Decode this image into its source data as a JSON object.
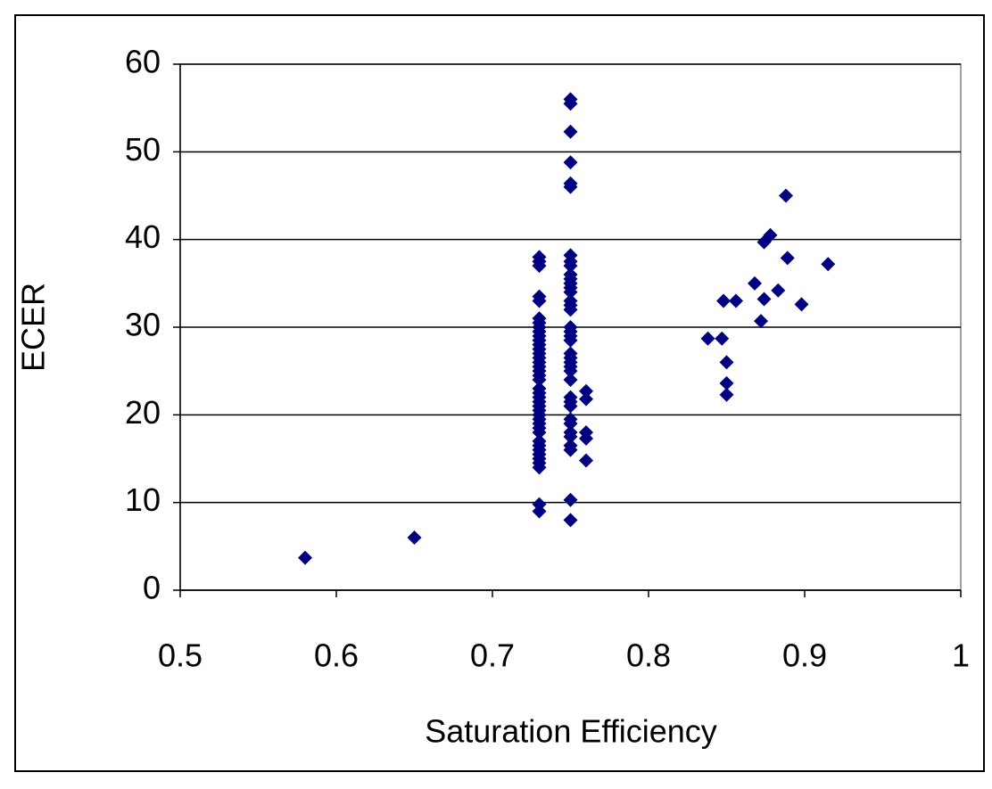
{
  "chart_data": {
    "type": "scatter",
    "x_label": "Saturation Efficiency",
    "y_label": "ECER",
    "color": "#000080",
    "grid": true,
    "xlim": [
      0.5,
      1
    ],
    "xticks": [
      0.5,
      0.6,
      0.7,
      0.8,
      0.9,
      1
    ],
    "ylim": [
      0,
      60
    ],
    "yticks": [
      0,
      10,
      20,
      30,
      40,
      50,
      60
    ],
    "x": [
      0.58,
      0.65,
      0.73,
      0.73,
      0.73,
      0.73,
      0.73,
      0.73,
      0.73,
      0.73,
      0.73,
      0.73,
      0.73,
      0.73,
      0.73,
      0.73,
      0.73,
      0.73,
      0.73,
      0.73,
      0.73,
      0.73,
      0.73,
      0.73,
      0.73,
      0.73,
      0.73,
      0.73,
      0.73,
      0.73,
      0.73,
      0.73,
      0.73,
      0.73,
      0.73,
      0.73,
      0.73,
      0.73,
      0.73,
      0.73,
      0.73,
      0.73,
      0.75,
      0.75,
      0.75,
      0.75,
      0.75,
      0.75,
      0.75,
      0.75,
      0.75,
      0.75,
      0.75,
      0.75,
      0.75,
      0.75,
      0.75,
      0.75,
      0.75,
      0.75,
      0.75,
      0.75,
      0.75,
      0.75,
      0.75,
      0.75,
      0.75,
      0.75,
      0.75,
      0.75,
      0.75,
      0.75,
      0.75,
      0.75,
      0.75,
      0.75,
      0.75,
      0.75,
      0.75,
      0.75,
      0.76,
      0.76,
      0.76,
      0.76,
      0.76,
      0.838,
      0.847,
      0.848,
      0.85,
      0.85,
      0.85,
      0.856,
      0.868,
      0.872,
      0.874,
      0.874,
      0.878,
      0.883,
      0.888,
      0.889,
      0.898,
      0.915
    ],
    "values": [
      3.7,
      6.0,
      37.5,
      38,
      37,
      33.5,
      33,
      31,
      30.5,
      30,
      29.5,
      29,
      28.5,
      28,
      27.5,
      27,
      26.5,
      26,
      25.5,
      25,
      24.5,
      24,
      23,
      22.5,
      22,
      21.5,
      21,
      20.5,
      20,
      19.5,
      19,
      18.5,
      18,
      17,
      16.5,
      16,
      15.5,
      15,
      14.5,
      14,
      9.8,
      9,
      56,
      55.5,
      52.3,
      48.8,
      46.4,
      46,
      38.2,
      37.5,
      37,
      36,
      35.5,
      35,
      34.5,
      34,
      33,
      32.5,
      32,
      30,
      29.5,
      29,
      28.5,
      27,
      26.5,
      26,
      25.5,
      25,
      24,
      22,
      21.5,
      21,
      19.5,
      19,
      18,
      17.5,
      16.5,
      16,
      10.3,
      8,
      22.7,
      21.8,
      18,
      17.3,
      14.8,
      28.7,
      28.7,
      33,
      26,
      23.6,
      22.3,
      33,
      35,
      30.7,
      33.2,
      39.7,
      40.5,
      34.2,
      45,
      37.9,
      32.6,
      37.2
    ]
  }
}
